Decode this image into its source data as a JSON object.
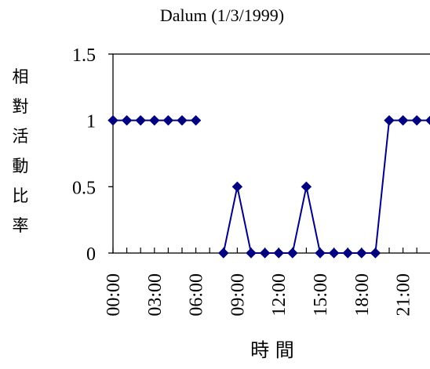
{
  "chart_data": {
    "type": "line",
    "title": "Dalum (1/3/1999)",
    "xlabel": "時 間",
    "ylabel": "相對活動比率",
    "ylim": [
      0,
      1.5
    ],
    "yticks": [
      "0",
      "0.5",
      "1",
      "1.5"
    ],
    "xticks": [
      "00:00",
      "03:00",
      "06:00",
      "09:00",
      "12:00",
      "15:00",
      "18:00",
      "21:00"
    ],
    "grid": false,
    "legend": "none",
    "line_color": "#000080",
    "series": [
      {
        "x": [
          "00:00",
          "01:00",
          "02:00",
          "03:00",
          "04:00",
          "05:00",
          "06:00",
          "07:00",
          "08:00",
          "09:00",
          "10:00",
          "11:00",
          "12:00",
          "13:00",
          "14:00",
          "15:00",
          "16:00",
          "17:00",
          "18:00",
          "19:00",
          "20:00",
          "21:00",
          "22:00",
          "23:00"
        ],
        "values": [
          1,
          1,
          1,
          1,
          1,
          1,
          1,
          null,
          0,
          0.5,
          0,
          0,
          0,
          0,
          0.5,
          0,
          0,
          0,
          0,
          0,
          1,
          1,
          1,
          1
        ]
      }
    ]
  }
}
